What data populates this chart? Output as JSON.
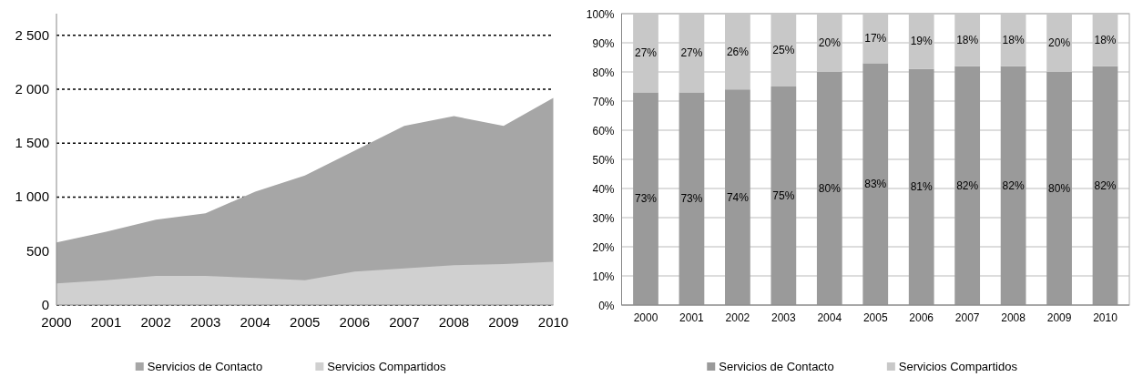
{
  "chart_data": [
    {
      "type": "area",
      "categories": [
        "2000",
        "2001",
        "2002",
        "2003",
        "2004",
        "2005",
        "2006",
        "2007",
        "2008",
        "2009",
        "2010"
      ],
      "series": [
        {
          "name": "Servicios de Contacto",
          "color": "#a6a6a6",
          "values": [
            580,
            680,
            790,
            850,
            1050,
            1200,
            1430,
            1660,
            1750,
            1660,
            1920
          ]
        },
        {
          "name": "Servicios Compartidos",
          "color": "#d0d0d0",
          "values": [
            200,
            230,
            270,
            270,
            250,
            230,
            310,
            340,
            370,
            380,
            400
          ]
        }
      ],
      "ylim": [
        0,
        2700
      ],
      "yticks": [
        0,
        500,
        {
          "value": 1000,
          "label": "1 000"
        },
        {
          "value": 1500,
          "label": "1 500"
        },
        {
          "value": 2000,
          "label": "2 000"
        },
        {
          "value": 2500,
          "label": "2 500"
        }
      ],
      "grid": "y",
      "legend": "bottom"
    },
    {
      "type": "bar",
      "stacked": true,
      "categories": [
        "2000",
        "2001",
        "2002",
        "2003",
        "2004",
        "2005",
        "2006",
        "2007",
        "2008",
        "2009",
        "2010"
      ],
      "series": [
        {
          "name": "Servicios de Contacto",
          "color": "#9a9a9a",
          "values": [
            73,
            73,
            74,
            75,
            80,
            83,
            81,
            82,
            82,
            80,
            82
          ],
          "value_labels": [
            "73%",
            "73%",
            "74%",
            "75%",
            "80%",
            "83%",
            "81%",
            "82%",
            "82%",
            "80%",
            "82%"
          ]
        },
        {
          "name": "Servicios Compartidos",
          "color": "#c8c8c8",
          "values": [
            27,
            27,
            26,
            25,
            20,
            17,
            19,
            18,
            18,
            20,
            18
          ],
          "value_labels": [
            "27%",
            "27%",
            "26%",
            "25%",
            "20%",
            "17%",
            "19%",
            "18%",
            "18%",
            "20%",
            "18%"
          ]
        }
      ],
      "ylim": [
        0,
        100
      ],
      "yticks": [
        {
          "value": 0,
          "label": "0%"
        },
        {
          "value": 10,
          "label": "10%"
        },
        {
          "value": 20,
          "label": "20%"
        },
        {
          "value": 30,
          "label": "30%"
        },
        {
          "value": 40,
          "label": "40%"
        },
        {
          "value": 50,
          "label": "50%"
        },
        {
          "value": 60,
          "label": "60%"
        },
        {
          "value": 70,
          "label": "70%"
        },
        {
          "value": 80,
          "label": "80%"
        },
        {
          "value": 90,
          "label": "90%"
        },
        {
          "value": 100,
          "label": "100%"
        }
      ],
      "grid": "y",
      "legend": "bottom"
    }
  ]
}
